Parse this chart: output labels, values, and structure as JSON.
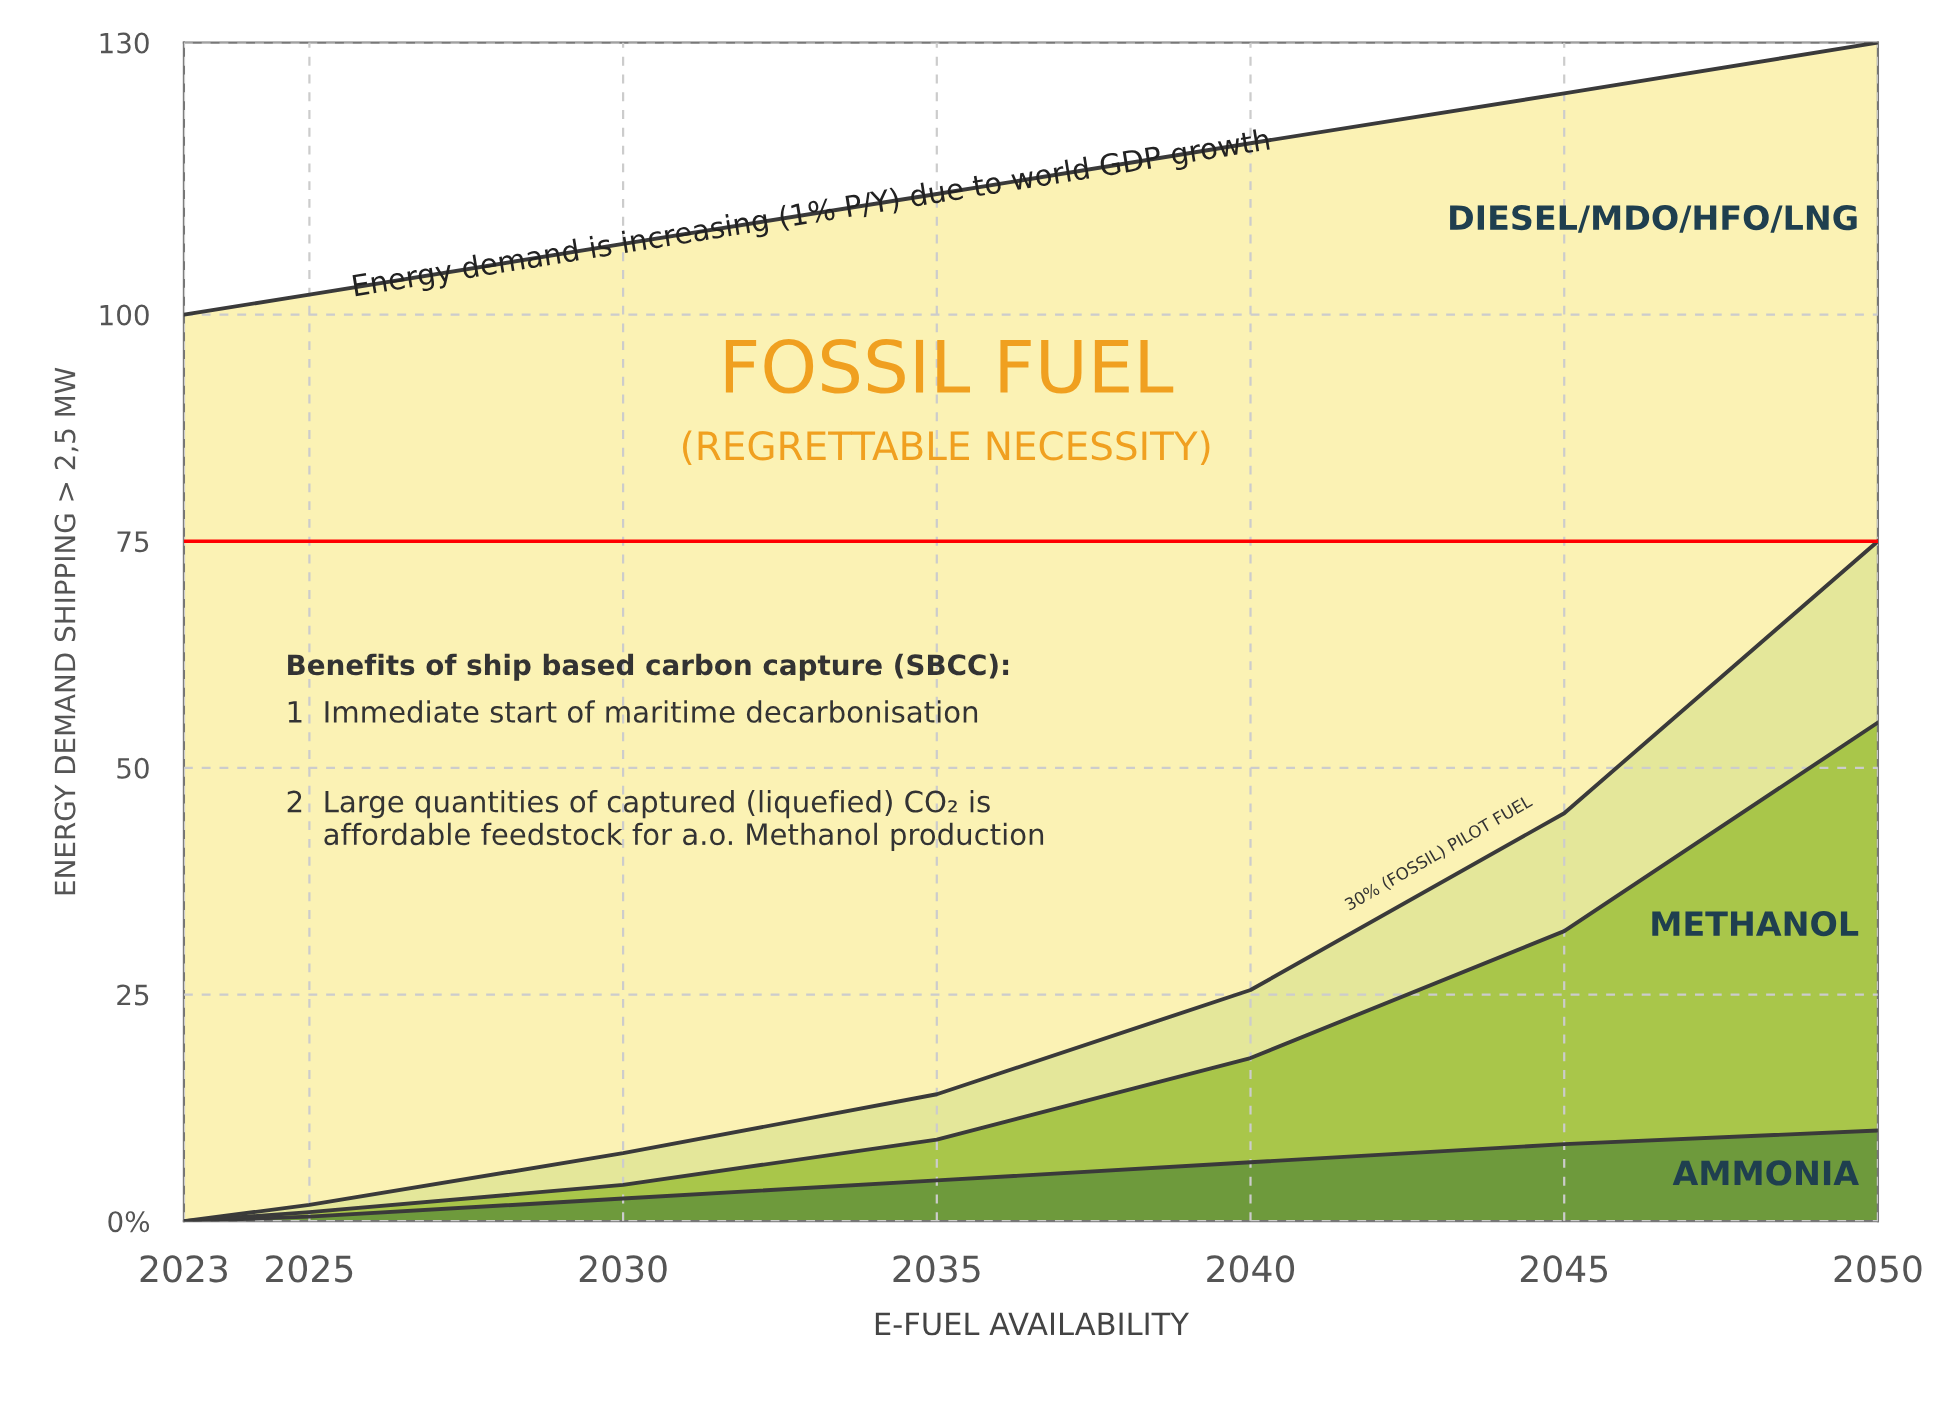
{
  "chart_data": {
    "type": "area",
    "stacked": true,
    "xlabel": "E-FUEL AVAILABILITY",
    "ylabel": "ENERGY DEMAND SHIPPING > 2,5 MW",
    "x": [
      2023,
      2025,
      2030,
      2035,
      2040,
      2045,
      2050
    ],
    "series": [
      {
        "name": "AMMONIA",
        "color": "#6e9a3c",
        "values": [
          0,
          0.5,
          2.5,
          4.5,
          6.5,
          8.5,
          10
        ]
      },
      {
        "name": "METHANOL",
        "color": "#a9c64a",
        "values": [
          0,
          0.5,
          1.5,
          4.5,
          11.5,
          23.5,
          45
        ]
      },
      {
        "name": "30% (FOSSIL) PILOT FUEL",
        "color": "#e4e79a",
        "values": [
          0,
          0.8,
          3.5,
          5,
          7.5,
          13,
          20
        ]
      },
      {
        "name": "DIESEL/MDO/HFO/LNG",
        "color": "#fbf2b4",
        "values": [
          100,
          100.4,
          100.3,
          99.3,
          93.4,
          79.4,
          55
        ]
      }
    ],
    "xlim": [
      2023,
      2050
    ],
    "ylim": [
      0,
      130
    ],
    "xticks": [
      2023,
      2025,
      2030,
      2035,
      2040,
      2045,
      2050
    ],
    "yticks": [
      {
        "value": 0,
        "label": "0%"
      },
      25,
      50,
      75,
      100,
      130
    ],
    "grid": true,
    "ref_lines": [
      {
        "axis": "y",
        "value": 75,
        "label": null,
        "color": "#ff0000"
      }
    ],
    "annotations": [
      {
        "text": "Energy demand is increasing (1% P/Y) due to world GDP growth",
        "x": 2033,
        "y": 111
      },
      "FOSSIL FUEL",
      "(REGRETTABLE NECESSITY)",
      "Benefits of ship based carbon capture (SBCC):",
      "1  Immediate start of maritime decarbonisation",
      "2  Large quantities of captured (liquefied) CO₂ is\n    affordable feedstock for a.o. Methanol production"
    ]
  }
}
